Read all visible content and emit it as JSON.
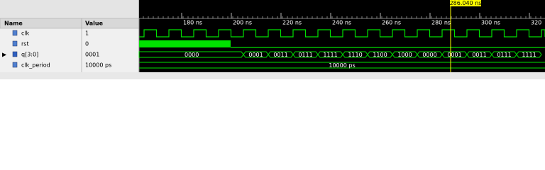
{
  "header": {
    "name": "Name",
    "value": "Value"
  },
  "cursor": "286.040 ns",
  "ruler": [
    "180 ns",
    "200 ns",
    "220 ns",
    "240 ns",
    "260 ns",
    "280 ns",
    "300 ns",
    "320"
  ],
  "signals": [
    {
      "name": "clk",
      "value": "1"
    },
    {
      "name": "rst",
      "value": "0"
    },
    {
      "name": "q[3:0]",
      "value": "0001",
      "segments": [
        "0000",
        "0001",
        "0011",
        "0111",
        "1111",
        "1110",
        "1100",
        "1000",
        "0000",
        "0001",
        "0011",
        "0111",
        "1111"
      ]
    },
    {
      "name": "clk_period",
      "value": "10000 ps",
      "segments": [
        "10000 ps"
      ]
    }
  ]
}
